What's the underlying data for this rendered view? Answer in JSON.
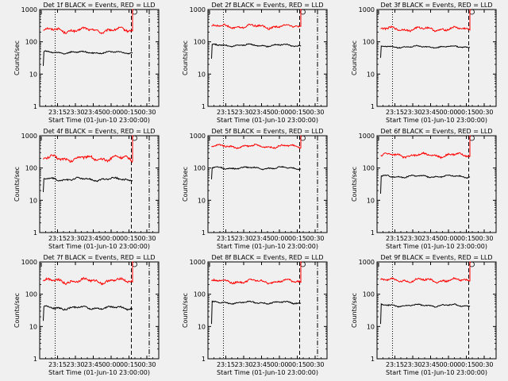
{
  "chart_data": [
    {
      "type": "line",
      "title": "Det 1f BLACK = Events, RED = LLD",
      "xlabel": "Start Time (01-Jun-10 23:00:00)",
      "ylabel": "Counts/sec",
      "yscale": "log",
      "ylim": [
        1,
        1000
      ],
      "x_ticks": [
        "23:15",
        "23:30",
        "23:45",
        "00:00",
        "00:15",
        "00:30"
      ],
      "y_ticks": [
        "1",
        "10",
        "100",
        "1000"
      ],
      "series": [
        {
          "color": "#ff0000",
          "start_min": 3,
          "end_min": 78,
          "level": 230,
          "waviness": 0.12,
          "post_spike": 1100
        },
        {
          "color": "#000000",
          "start_min": 3,
          "end_min": 78,
          "level": 47,
          "waviness": 0.06,
          "start_drop": 18,
          "spike": null
        }
      ],
      "marker_dotted_min": 13,
      "marker_dashed_min": 77,
      "marker_dashdot_min": 92
    },
    {
      "type": "line",
      "title": "Det 2f BLACK = Events, RED = LLD",
      "xlabel": "Start Time (01-Jun-10 23:00:00)",
      "ylabel": "Counts/sec",
      "yscale": "log",
      "ylim": [
        1,
        1000
      ],
      "x_ticks": [
        "23:15",
        "23:30",
        "23:45",
        "00:00",
        "00:15",
        "00:30"
      ],
      "y_ticks": [
        "1",
        "10",
        "100",
        "1000"
      ],
      "series": [
        {
          "color": "#ff0000",
          "start_min": 3,
          "end_min": 78,
          "level": 300,
          "waviness": 0.1,
          "post_spike": 1100
        },
        {
          "color": "#000000",
          "start_min": 3,
          "end_min": 78,
          "level": 78,
          "waviness": 0.06,
          "start_drop": 30,
          "spike": null
        }
      ],
      "marker_dotted_min": 13,
      "marker_dashed_min": 77,
      "marker_dashdot_min": 92
    },
    {
      "type": "line",
      "title": "Det 3f BLACK = Events, RED = LLD",
      "xlabel": "Start Time (01-Jun-10 23:00:00)",
      "ylabel": "Counts/sec",
      "yscale": "log",
      "ylim": [
        1,
        1000
      ],
      "x_ticks": [
        "23:15",
        "23:30",
        "23:45",
        "00:00",
        "00:15",
        "00:30"
      ],
      "y_ticks": [
        "1",
        "10",
        "100",
        "1000"
      ],
      "series": [
        {
          "color": "#ff0000",
          "start_min": 3,
          "end_min": 78,
          "level": 250,
          "waviness": 0.1,
          "post_spike": 1100
        },
        {
          "color": "#000000",
          "start_min": 3,
          "end_min": 78,
          "level": 70,
          "waviness": 0.05,
          "start_drop": 32,
          "spike": null
        }
      ],
      "marker_dotted_min": 13,
      "marker_dashed_min": 77,
      "marker_dashdot_min": null
    },
    {
      "type": "line",
      "title": "Det 4f BLACK = Events, RED = LLD",
      "xlabel": "Start Time (01-Jun-10 23:00:00)",
      "ylabel": "Counts/sec",
      "yscale": "log",
      "ylim": [
        1,
        1000
      ],
      "x_ticks": [
        "23:15",
        "23:30",
        "23:45",
        "00:00",
        "00:15",
        "00:30"
      ],
      "y_ticks": [
        "1",
        "10",
        "100",
        "1000"
      ],
      "series": [
        {
          "color": "#ff0000",
          "start_min": 3,
          "end_min": 78,
          "level": 200,
          "waviness": 0.14,
          "post_spike": 1100
        },
        {
          "color": "#000000",
          "start_min": 3,
          "end_min": 78,
          "level": 45,
          "waviness": 0.08,
          "start_drop": 18,
          "spike": null
        }
      ],
      "marker_dotted_min": 13,
      "marker_dashed_min": 77,
      "marker_dashdot_min": 92
    },
    {
      "type": "line",
      "title": "Det 5f BLACK = Events, RED = LLD",
      "xlabel": "Start Time (01-Jun-10 23:00:00)",
      "ylabel": "Counts/sec",
      "yscale": "log",
      "ylim": [
        1,
        1000
      ],
      "x_ticks": [
        "23:15",
        "23:30",
        "23:45",
        "00:00",
        "00:15",
        "00:30"
      ],
      "y_ticks": [
        "1",
        "10",
        "100",
        "1000"
      ],
      "series": [
        {
          "color": "#ff0000",
          "start_min": 3,
          "end_min": 78,
          "level": 470,
          "waviness": 0.08,
          "post_spike": 1100
        },
        {
          "color": "#000000",
          "start_min": 3,
          "end_min": 78,
          "level": 100,
          "waviness": 0.06,
          "start_drop": 45,
          "spike": null
        }
      ],
      "marker_dotted_min": 13,
      "marker_dashed_min": 77,
      "marker_dashdot_min": 92
    },
    {
      "type": "line",
      "title": "Det 6f BLACK = Events, RED = LLD",
      "xlabel": "Start Time (01-Jun-10 23:00:00)",
      "ylabel": "Counts/sec",
      "yscale": "log",
      "ylim": [
        1,
        1000
      ],
      "x_ticks": [
        "23:15",
        "23:30",
        "23:45",
        "00:00",
        "00:15",
        "00:30"
      ],
      "y_ticks": [
        "1",
        "10",
        "100",
        "1000"
      ],
      "series": [
        {
          "color": "#ff0000",
          "start_min": 3,
          "end_min": 78,
          "level": 250,
          "waviness": 0.1,
          "post_spike": 1100
        },
        {
          "color": "#000000",
          "start_min": 3,
          "end_min": 78,
          "level": 55,
          "waviness": 0.06,
          "start_drop": 16,
          "spike": null
        }
      ],
      "marker_dotted_min": 13,
      "marker_dashed_min": 77,
      "marker_dashdot_min": null
    },
    {
      "type": "line",
      "title": "Det 7f BLACK = Events, RED = LLD",
      "xlabel": "Start Time (01-Jun-10 23:00:00)",
      "ylabel": "Counts/sec",
      "yscale": "log",
      "ylim": [
        1,
        1000
      ],
      "x_ticks": [
        "23:15",
        "23:30",
        "23:45",
        "00:00",
        "00:15",
        "00:30"
      ],
      "y_ticks": [
        "1",
        "10",
        "100",
        "1000"
      ],
      "series": [
        {
          "color": "#ff0000",
          "start_min": 3,
          "end_min": 78,
          "level": 260,
          "waviness": 0.12,
          "post_spike": 1100
        },
        {
          "color": "#000000",
          "start_min": 3,
          "end_min": 78,
          "level": 38,
          "waviness": 0.08,
          "start_drop": 15,
          "spike": null
        }
      ],
      "marker_dotted_min": 13,
      "marker_dashed_min": 77,
      "marker_dashdot_min": 92
    },
    {
      "type": "line",
      "title": "Det 8f BLACK = Events, RED = LLD",
      "xlabel": "Start Time (01-Jun-10 23:00:00)",
      "ylabel": "Counts/sec",
      "yscale": "log",
      "ylim": [
        1,
        1000
      ],
      "x_ticks": [
        "23:15",
        "23:30",
        "23:45",
        "00:00",
        "00:15",
        "00:30"
      ],
      "y_ticks": [
        "1",
        "10",
        "100",
        "1000"
      ],
      "series": [
        {
          "color": "#ff0000",
          "start_min": 3,
          "end_min": 78,
          "level": 250,
          "waviness": 0.1,
          "post_spike": 1100
        },
        {
          "color": "#000000",
          "start_min": 3,
          "end_min": 78,
          "level": 55,
          "waviness": 0.06,
          "start_drop": 12,
          "spike": null
        }
      ],
      "marker_dotted_min": 13,
      "marker_dashed_min": 77,
      "marker_dashdot_min": 92
    },
    {
      "type": "line",
      "title": "Det 9f BLACK = Events, RED = LLD",
      "xlabel": "Start Time (01-Jun-10 23:00:00)",
      "ylabel": "Counts/sec",
      "yscale": "log",
      "ylim": [
        1,
        1000
      ],
      "x_ticks": [
        "23:15",
        "23:30",
        "23:45",
        "00:00",
        "00:15",
        "00:30"
      ],
      "y_ticks": [
        "1",
        "10",
        "100",
        "1000"
      ],
      "series": [
        {
          "color": "#ff0000",
          "start_min": 3,
          "end_min": 78,
          "level": 270,
          "waviness": 0.1,
          "post_spike": 1100
        },
        {
          "color": "#000000",
          "start_min": 3,
          "end_min": 78,
          "level": 45,
          "waviness": 0.06,
          "start_drop": 12,
          "spike": null
        }
      ],
      "marker_dotted_min": 13,
      "marker_dashed_min": 77,
      "marker_dashdot_min": null
    }
  ]
}
